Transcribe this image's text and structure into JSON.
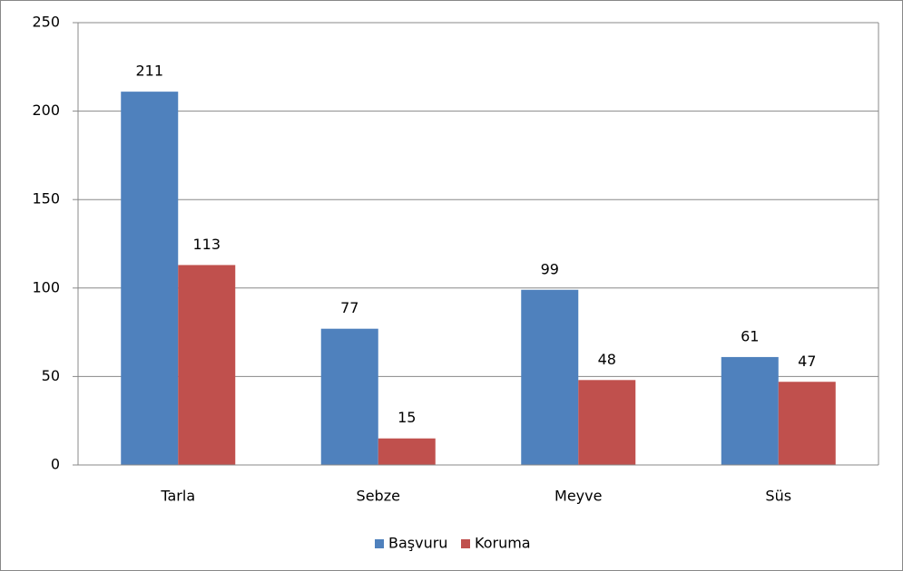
{
  "chart_data": {
    "type": "bar",
    "categories": [
      "Tarla",
      "Sebze",
      "Meyve",
      "Süs"
    ],
    "series": [
      {
        "name": "Başvuru",
        "color": "#4f81bd",
        "values": [
          211,
          77,
          99,
          61
        ]
      },
      {
        "name": "Koruma",
        "color": "#c0504d",
        "values": [
          113,
          15,
          48,
          47
        ]
      }
    ],
    "ylim": [
      0,
      250
    ],
    "yticks": [
      0,
      50,
      100,
      150,
      200,
      250
    ],
    "grid": true,
    "legend": "bottom"
  }
}
